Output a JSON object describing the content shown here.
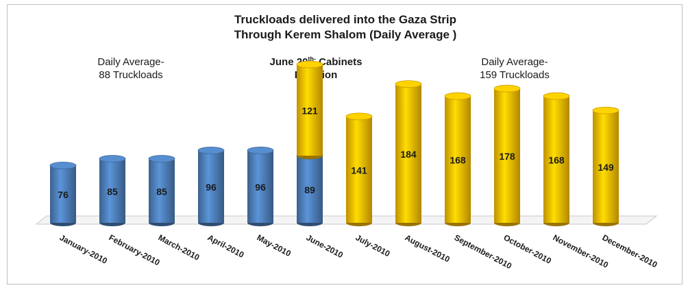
{
  "chart_data": {
    "type": "bar",
    "title": "Truckloads delivered into the Gaza Strip",
    "subtitle": "Through Kerem Shalom (Daily Average )",
    "categories": [
      "January-2010",
      "February-2010",
      "March-2010",
      "April-2010",
      "May-2010",
      "June-2010",
      "July-2010",
      "August-2010",
      "September-2010",
      "October-2010",
      "November-2010",
      "December-2010"
    ],
    "series": [
      {
        "color": "#4f81bd",
        "values": [
          76,
          85,
          85,
          96,
          96,
          89,
          null,
          null,
          null,
          null,
          null,
          null
        ]
      },
      {
        "color": "#ffc000",
        "values": [
          null,
          null,
          null,
          null,
          null,
          121,
          141,
          184,
          168,
          178,
          168,
          149
        ]
      }
    ],
    "stacked": true,
    "ylim": [
      0,
      230
    ],
    "grid": false,
    "annotations": {
      "left": [
        "Daily Average-",
        "88 Truckloads"
      ],
      "middle_prefix": "June 20",
      "middle_sup": "th-",
      "middle_suffix": " Cabinets",
      "middle_line2": "Decision",
      "right": [
        "Daily Average-",
        "159 Truckloads"
      ]
    }
  }
}
